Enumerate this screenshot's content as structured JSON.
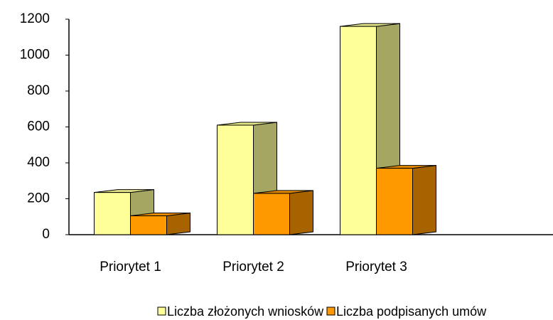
{
  "chart_data": {
    "type": "bar3d",
    "categories": [
      "Priorytet 1",
      "Priorytet 2",
      "Priorytet 3"
    ],
    "series": [
      {
        "name": "Liczba złożonych wniosków",
        "color": "#ffff99",
        "values": [
          235,
          610,
          1160
        ]
      },
      {
        "name": "Liczba podpisanych umów",
        "color": "#ff9900",
        "values": [
          105,
          230,
          370
        ]
      }
    ],
    "ylim": [
      0,
      1200
    ],
    "yticks": [
      0,
      200,
      400,
      600,
      800,
      1000,
      1200
    ],
    "grid": false,
    "legend": "bottom"
  }
}
